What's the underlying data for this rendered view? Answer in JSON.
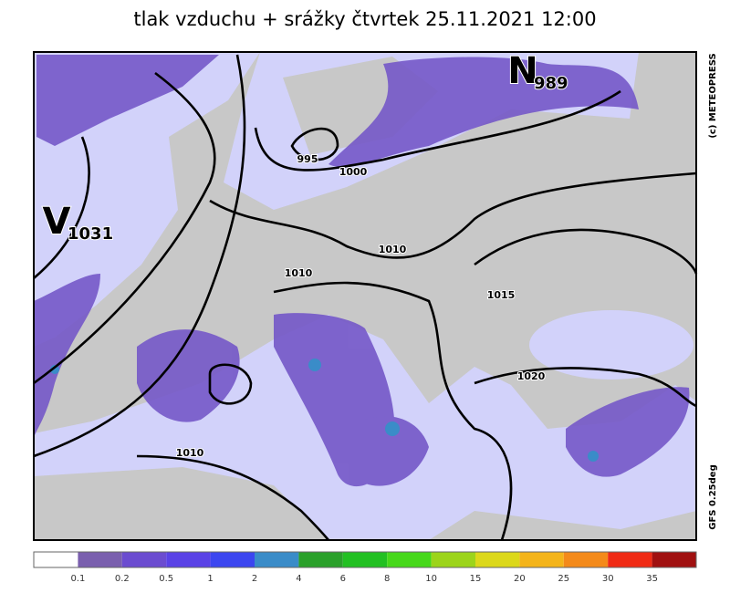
{
  "title": "tlak vzduchu + srážky čtvrtek 25.11.2021 12:00",
  "credit": "(c) METEOPRESS",
  "model": "GFS 0.25deg",
  "centers": [
    {
      "letter": "V",
      "value": "1031"
    },
    {
      "letter": "N",
      "value": "989"
    }
  ],
  "isobar_labels": [
    "995",
    "1000",
    "1010",
    "1010",
    "1015",
    "1020",
    "1010"
  ],
  "legend": {
    "colors": [
      "#ffffff",
      "#7a5fae",
      "#6b4cd0",
      "#5a42e6",
      "#3c46f0",
      "#3a8cc8",
      "#2aa02a",
      "#22c022",
      "#46d81a",
      "#9cd41a",
      "#dcd81a",
      "#f4b41a",
      "#f48a1a",
      "#f02a14",
      "#a01010"
    ],
    "labels": [
      0.1,
      0.2,
      0.5,
      1,
      2,
      4,
      6,
      8,
      10,
      15,
      20,
      25,
      30,
      35
    ]
  }
}
